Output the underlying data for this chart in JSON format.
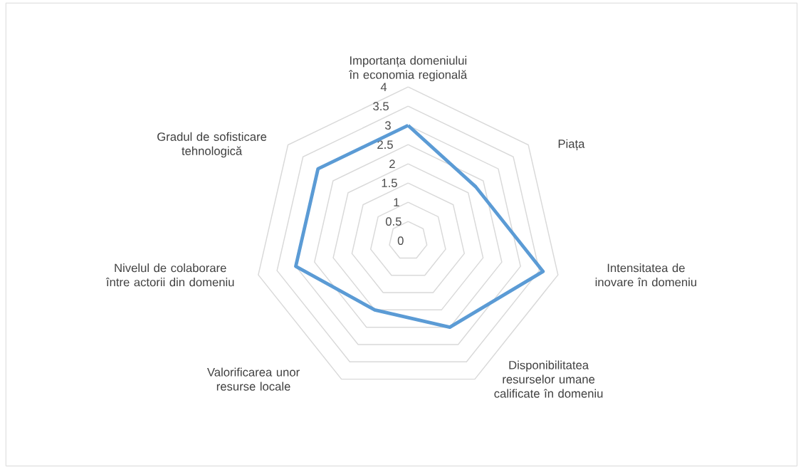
{
  "chart_data": {
    "type": "radar",
    "categories": [
      "Importanța domeniului în economia regională",
      "Piața",
      "Intensitatea de inovare în domeniu",
      "Disponibilitatea resurselor umane calificate în domeniu",
      "Valorificarea unor resurse locale",
      "Nivelul de colaborare între actorii din domeniu",
      "Gradul de sofisticare tehnologică"
    ],
    "series": [
      {
        "color": "#5b9bd5",
        "values": [
          3.0,
          2.25,
          3.6,
          2.5,
          2.0,
          3.0,
          3.0
        ]
      }
    ],
    "ylim": [
      0,
      4
    ],
    "yticks": [
      0,
      0.5,
      1,
      1.5,
      2,
      2.5,
      3,
      3.5,
      4
    ],
    "grid": true,
    "line_style": "solid"
  }
}
